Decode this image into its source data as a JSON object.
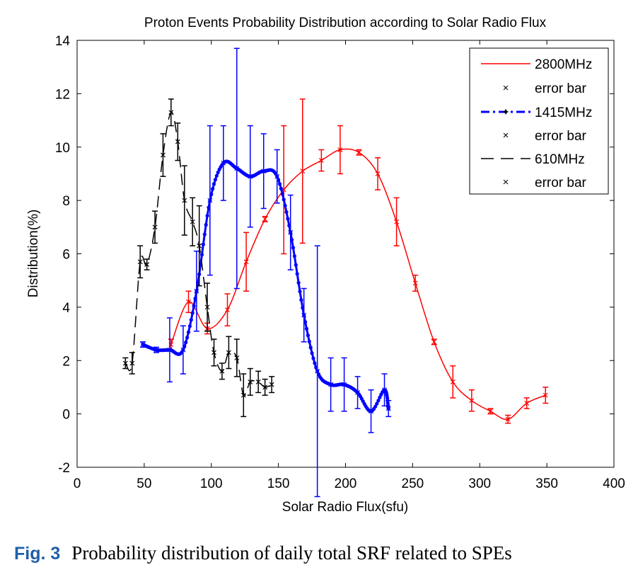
{
  "chart_data": {
    "type": "line",
    "title": "Proton  Events Probability Distribution according to Solar Radio Flux",
    "xlabel": "Solar Radio Flux(sfu)",
    "ylabel": "Distribution(%)",
    "xlim": [
      0,
      400
    ],
    "ylim": [
      -2,
      14
    ],
    "xticks": [
      0,
      50,
      100,
      150,
      200,
      250,
      300,
      350,
      400
    ],
    "yticks": [
      -2,
      0,
      2,
      4,
      6,
      8,
      10,
      12,
      14
    ],
    "grid": false,
    "legend_position": "top-right",
    "legend": [
      "2800MHz",
      "error bar",
      "1415MHz",
      "error bar",
      "610MHz",
      "error bar"
    ],
    "series": [
      {
        "name": "2800MHz",
        "color": "#ff0000",
        "style": "solid",
        "x": [
          70,
          83,
          97,
          112,
          126,
          140,
          154,
          168,
          182,
          196,
          210,
          224,
          238,
          252,
          266,
          280,
          294,
          308,
          321,
          335,
          349
        ],
        "y": [
          2.6,
          4.2,
          3.2,
          3.9,
          5.7,
          7.3,
          8.4,
          9.1,
          9.5,
          9.9,
          9.8,
          9.0,
          7.2,
          4.9,
          2.7,
          1.2,
          0.5,
          0.1,
          -0.2,
          0.4,
          0.7
        ],
        "err": [
          0.2,
          0.4,
          0.2,
          0.6,
          1.1,
          0.1,
          2.4,
          2.7,
          0.4,
          0.9,
          0.1,
          0.6,
          0.9,
          0.3,
          0.1,
          0.6,
          0.4,
          0.1,
          0.15,
          0.2,
          0.3
        ]
      },
      {
        "name": "1415MHz",
        "color": "#0000ff",
        "style": "dash-dot-marker",
        "x": [
          49,
          59,
          69,
          79,
          89,
          99,
          109,
          119,
          129,
          139,
          149,
          159,
          169,
          179,
          189,
          199,
          209,
          219,
          229,
          232
        ],
        "y": [
          2.6,
          2.4,
          2.4,
          2.4,
          4.6,
          8.0,
          9.4,
          9.2,
          8.9,
          9.1,
          8.9,
          6.8,
          3.7,
          1.6,
          1.1,
          1.1,
          0.8,
          0.1,
          0.9,
          0.2
        ],
        "err": [
          0.1,
          0.1,
          1.2,
          0.9,
          1.5,
          2.8,
          1.4,
          4.5,
          1.9,
          1.4,
          1.0,
          1.4,
          1.0,
          4.7,
          1.0,
          1.0,
          0.6,
          0.8,
          0.6,
          0.3
        ]
      },
      {
        "name": "610MHz",
        "color": "#000000",
        "style": "dashed",
        "x": [
          36,
          41,
          47,
          52,
          58,
          64,
          70,
          75,
          80,
          86,
          91,
          97,
          102,
          108,
          113,
          119,
          124,
          129,
          135,
          140,
          145
        ],
        "y": [
          1.9,
          1.9,
          5.7,
          5.6,
          7.0,
          9.7,
          11.3,
          10.2,
          8.0,
          7.2,
          6.3,
          4.0,
          2.3,
          1.6,
          2.3,
          2.1,
          0.7,
          1.2,
          1.2,
          1.0,
          1.1
        ],
        "err": [
          0.2,
          0.4,
          0.6,
          0.2,
          0.6,
          0.8,
          0.5,
          0.7,
          1.3,
          0.9,
          1.5,
          0.9,
          0.5,
          0.3,
          0.6,
          0.7,
          0.8,
          0.5,
          0.4,
          0.3,
          0.3
        ]
      }
    ]
  },
  "caption": {
    "label": "Fig. 3",
    "text": "Probability distribution of daily total SRF related to SPEs"
  }
}
